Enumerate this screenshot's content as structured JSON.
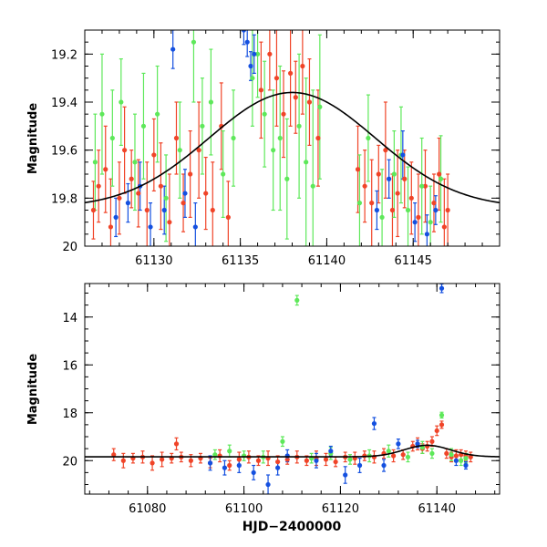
{
  "colors": {
    "red": "#f04428",
    "green": "#5ee85a",
    "blue": "#1450e0",
    "curve": "#000000",
    "frame": "#000000"
  },
  "chart_data": [
    {
      "id": "top",
      "type": "scatter",
      "title": "",
      "xlabel": "",
      "ylabel": "Magnitude",
      "xlim": [
        61126,
        61150
      ],
      "ylim": [
        20,
        19.1
      ],
      "xticks": [
        61130,
        61135,
        61140,
        61145
      ],
      "xtick_labels": [
        "61130",
        "61135",
        "61140",
        "61145"
      ],
      "yticks": [
        19.2,
        19.4,
        19.6,
        19.8,
        20
      ],
      "ytick_labels": [
        "19.2",
        "19.4",
        "19.6",
        "19.8",
        "20"
      ],
      "curve": {
        "type": "gaussian-dip",
        "baseline": 19.84,
        "peak_mag": 19.36,
        "center": 61138,
        "sigma": 4.8
      },
      "series": [
        {
          "name": "red",
          "color_key": "red",
          "points": [
            [
              61126.5,
              19.85,
              0.12
            ],
            [
              61126.8,
              19.75,
              0.15
            ],
            [
              61127.2,
              19.68,
              0.18
            ],
            [
              61127.5,
              19.92,
              0.2
            ],
            [
              61128.0,
              19.8,
              0.15
            ],
            [
              61128.3,
              19.6,
              0.18
            ],
            [
              61128.7,
              19.72,
              0.12
            ],
            [
              61129.1,
              19.78,
              0.14
            ],
            [
              61129.6,
              19.85,
              0.2
            ],
            [
              61130.0,
              19.62,
              0.15
            ],
            [
              61130.4,
              19.75,
              0.18
            ],
            [
              61130.9,
              19.9,
              0.2
            ],
            [
              61131.3,
              19.55,
              0.15
            ],
            [
              61131.7,
              19.82,
              0.12
            ],
            [
              61132.1,
              19.7,
              0.18
            ],
            [
              61132.6,
              19.6,
              0.2
            ],
            [
              61133.0,
              19.78,
              0.15
            ],
            [
              61133.4,
              19.85,
              0.2
            ],
            [
              61133.9,
              19.5,
              0.18
            ],
            [
              61134.3,
              19.88,
              0.15
            ],
            [
              61136.2,
              19.35,
              0.2
            ],
            [
              61136.7,
              19.2,
              0.15
            ],
            [
              61137.1,
              19.3,
              0.2
            ],
            [
              61137.5,
              19.45,
              0.18
            ],
            [
              61137.9,
              19.28,
              0.22
            ],
            [
              61138.2,
              19.38,
              0.15
            ],
            [
              61138.6,
              19.25,
              0.2
            ],
            [
              61139.0,
              19.4,
              0.18
            ],
            [
              61139.5,
              19.55,
              0.2
            ],
            [
              61141.8,
              19.68,
              0.18
            ],
            [
              61142.2,
              19.75,
              0.15
            ],
            [
              61142.6,
              19.82,
              0.18
            ],
            [
              61143.0,
              19.7,
              0.12
            ],
            [
              61143.4,
              19.6,
              0.2
            ],
            [
              61143.8,
              19.85,
              0.15
            ],
            [
              61144.1,
              19.78,
              0.18
            ],
            [
              61144.5,
              19.72,
              0.12
            ],
            [
              61144.9,
              19.8,
              0.15
            ],
            [
              61145.3,
              19.88,
              0.18
            ],
            [
              61145.7,
              19.75,
              0.15
            ],
            [
              61146.2,
              19.82,
              0.12
            ],
            [
              61146.5,
              19.7,
              0.15
            ],
            [
              61146.8,
              19.92,
              0.2
            ],
            [
              61147.0,
              19.85,
              0.15
            ]
          ]
        },
        {
          "name": "green",
          "color_key": "green",
          "points": [
            [
              61126.6,
              19.65,
              0.2
            ],
            [
              61127.0,
              19.45,
              0.25
            ],
            [
              61127.6,
              19.55,
              0.2
            ],
            [
              61128.1,
              19.4,
              0.18
            ],
            [
              61128.9,
              19.65,
              0.2
            ],
            [
              61129.4,
              19.5,
              0.22
            ],
            [
              61130.2,
              19.45,
              0.2
            ],
            [
              61130.7,
              19.8,
              0.18
            ],
            [
              61131.5,
              19.6,
              0.2
            ],
            [
              61132.3,
              19.15,
              0.25
            ],
            [
              61132.8,
              19.5,
              0.2
            ],
            [
              61133.3,
              19.4,
              0.22
            ],
            [
              61134.0,
              19.7,
              0.18
            ],
            [
              61134.6,
              19.55,
              0.2
            ],
            [
              61135.7,
              19.3,
              0.2
            ],
            [
              61136.0,
              19.2,
              0.18
            ],
            [
              61136.4,
              19.45,
              0.22
            ],
            [
              61136.9,
              19.6,
              0.25
            ],
            [
              61137.3,
              19.55,
              0.3
            ],
            [
              61137.7,
              19.72,
              0.25
            ],
            [
              61138.4,
              19.5,
              0.3
            ],
            [
              61138.8,
              19.65,
              0.35
            ],
            [
              61139.2,
              19.75,
              0.4
            ],
            [
              61139.6,
              19.42,
              0.3
            ],
            [
              61141.9,
              19.82,
              0.2
            ],
            [
              61142.4,
              19.55,
              0.18
            ],
            [
              61143.2,
              19.88,
              0.2
            ],
            [
              61143.9,
              19.7,
              0.18
            ],
            [
              61144.3,
              19.62,
              0.2
            ],
            [
              61144.7,
              19.85,
              0.18
            ],
            [
              61145.5,
              19.75,
              0.2
            ],
            [
              61146.0,
              19.9,
              0.15
            ],
            [
              61146.6,
              19.72,
              0.18
            ]
          ]
        },
        {
          "name": "blue",
          "color_key": "blue",
          "points": [
            [
              61127.8,
              19.88,
              0.08
            ],
            [
              61128.5,
              19.82,
              0.08
            ],
            [
              61129.2,
              19.75,
              0.1
            ],
            [
              61129.8,
              19.92,
              0.1
            ],
            [
              61130.6,
              19.85,
              0.1
            ],
            [
              61131.1,
              19.18,
              0.08
            ],
            [
              61131.8,
              19.78,
              0.1
            ],
            [
              61132.4,
              19.92,
              0.1
            ],
            [
              61135.2,
              19.1,
              0.06
            ],
            [
              61135.4,
              19.15,
              0.06
            ],
            [
              61135.6,
              19.25,
              0.06
            ],
            [
              61135.8,
              19.2,
              0.08
            ],
            [
              61142.9,
              19.85,
              0.08
            ],
            [
              61143.6,
              19.72,
              0.08
            ],
            [
              61144.4,
              19.62,
              0.1
            ],
            [
              61145.1,
              19.9,
              0.08
            ],
            [
              61145.8,
              19.95,
              0.08
            ],
            [
              61146.3,
              19.85,
              0.06
            ]
          ]
        }
      ]
    },
    {
      "id": "bottom",
      "type": "scatter",
      "title": "",
      "xlabel": "HJD−2400000",
      "ylabel": "Magnitude",
      "xlim": [
        61067,
        61153
      ],
      "ylim": [
        21.4,
        12.6
      ],
      "xticks": [
        61080,
        61100,
        61120,
        61140
      ],
      "xtick_labels": [
        "61080",
        "61100",
        "61120",
        "61140"
      ],
      "yticks": [
        14,
        16,
        18,
        20
      ],
      "ytick_labels": [
        "14",
        "16",
        "18",
        "20"
      ],
      "curve": {
        "type": "gaussian-dip",
        "baseline": 19.84,
        "peak_mag": 19.36,
        "center": 61138,
        "sigma": 4.8
      },
      "series": [
        {
          "name": "red",
          "color_key": "red",
          "points": [
            [
              61073,
              19.75,
              0.25
            ],
            [
              61075,
              20.0,
              0.3
            ],
            [
              61077,
              19.9,
              0.2
            ],
            [
              61079,
              19.85,
              0.25
            ],
            [
              61081,
              20.1,
              0.3
            ],
            [
              61083,
              19.95,
              0.3
            ],
            [
              61085,
              19.9,
              0.2
            ],
            [
              61086,
              19.3,
              0.25
            ],
            [
              61087,
              19.85,
              0.2
            ],
            [
              61089,
              20.0,
              0.25
            ],
            [
              61091,
              19.9,
              0.2
            ],
            [
              61093,
              20.1,
              0.2
            ],
            [
              61095,
              19.8,
              0.25
            ],
            [
              61097,
              20.2,
              0.2
            ],
            [
              61099,
              19.95,
              0.3
            ],
            [
              61101,
              19.85,
              0.25
            ],
            [
              61103,
              20.0,
              0.2
            ],
            [
              61105,
              19.9,
              0.3
            ],
            [
              61107,
              20.05,
              0.25
            ],
            [
              61109,
              19.95,
              0.2
            ],
            [
              61111,
              19.85,
              0.25
            ],
            [
              61113,
              20.0,
              0.2
            ],
            [
              61115,
              19.9,
              0.3
            ],
            [
              61117,
              19.95,
              0.25
            ],
            [
              61119,
              20.05,
              0.2
            ],
            [
              61121,
              19.85,
              0.2
            ],
            [
              61123,
              19.9,
              0.25
            ],
            [
              61125,
              19.8,
              0.2
            ],
            [
              61127,
              19.85,
              0.25
            ],
            [
              61129,
              19.7,
              0.2
            ],
            [
              61131,
              19.8,
              0.25
            ],
            [
              61133,
              19.75,
              0.2
            ],
            [
              61135,
              19.4,
              0.2
            ],
            [
              61136,
              19.3,
              0.25
            ],
            [
              61137,
              19.5,
              0.2
            ],
            [
              61138,
              19.4,
              0.2
            ],
            [
              61139,
              19.2,
              0.2
            ],
            [
              61140,
              18.75,
              0.2
            ],
            [
              61141,
              18.5,
              0.15
            ],
            [
              61142,
              19.7,
              0.2
            ],
            [
              61143,
              19.85,
              0.2
            ],
            [
              61144,
              19.8,
              0.25
            ],
            [
              61145,
              19.75,
              0.2
            ],
            [
              61146,
              19.8,
              0.2
            ],
            [
              61147,
              19.85,
              0.2
            ]
          ]
        },
        {
          "name": "green",
          "color_key": "green",
          "points": [
            [
              61094,
              19.75,
              0.2
            ],
            [
              61097,
              19.6,
              0.25
            ],
            [
              61100,
              19.8,
              0.2
            ],
            [
              61104,
              19.85,
              0.25
            ],
            [
              61108,
              19.2,
              0.2
            ],
            [
              61111,
              13.3,
              0.2
            ],
            [
              61114,
              19.9,
              0.2
            ],
            [
              61118,
              19.7,
              0.25
            ],
            [
              61122,
              19.95,
              0.2
            ],
            [
              61126,
              19.8,
              0.25
            ],
            [
              61130,
              19.6,
              0.25
            ],
            [
              61134,
              19.85,
              0.2
            ],
            [
              61137,
              19.45,
              0.25
            ],
            [
              61139,
              19.7,
              0.2
            ],
            [
              61141,
              18.1,
              0.12
            ],
            [
              61143,
              19.75,
              0.25
            ],
            [
              61145,
              20.0,
              0.2
            ],
            [
              61146,
              19.9,
              0.2
            ]
          ]
        },
        {
          "name": "blue",
          "color_key": "blue",
          "points": [
            [
              61093,
              20.1,
              0.3
            ],
            [
              61096,
              20.3,
              0.3
            ],
            [
              61099,
              20.2,
              0.3
            ],
            [
              61102,
              20.5,
              0.3
            ],
            [
              61105,
              21.0,
              0.4
            ],
            [
              61107,
              20.3,
              0.3
            ],
            [
              61109,
              19.8,
              0.25
            ],
            [
              61115,
              20.0,
              0.3
            ],
            [
              61118,
              19.6,
              0.2
            ],
            [
              61121,
              20.6,
              0.35
            ],
            [
              61124,
              20.2,
              0.3
            ],
            [
              61127,
              18.45,
              0.25
            ],
            [
              61129,
              20.2,
              0.25
            ],
            [
              61132,
              19.3,
              0.2
            ],
            [
              61136,
              19.3,
              0.15
            ],
            [
              61141,
              12.8,
              0.18
            ],
            [
              61144,
              20.0,
              0.2
            ],
            [
              61146,
              20.2,
              0.15
            ]
          ]
        }
      ]
    }
  ]
}
